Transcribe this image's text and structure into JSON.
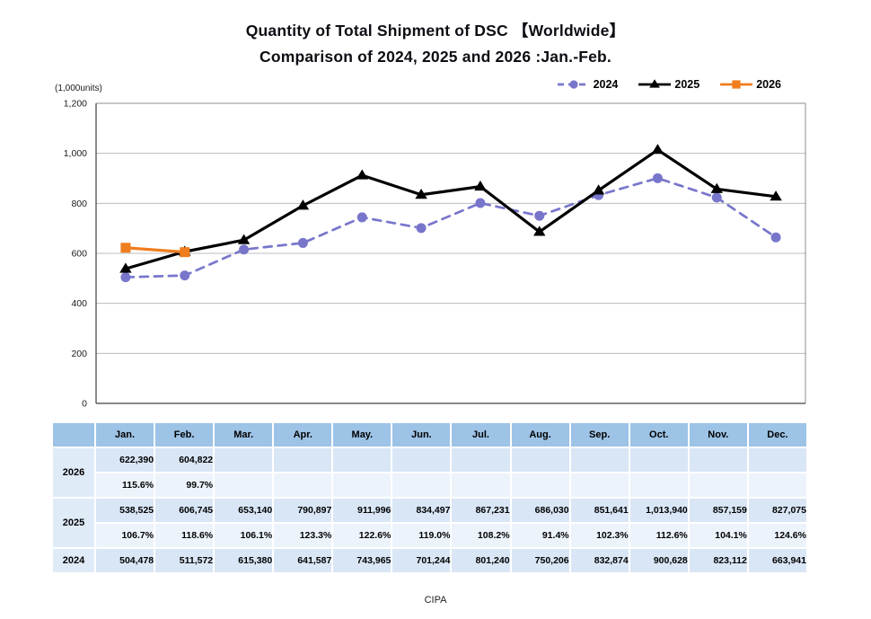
{
  "title": {
    "line1": "Quantity of Total Shipment of DSC 【Worldwide】",
    "line2": "Comparison of 2024, 2025 and 2026 :Jan.-Feb."
  },
  "footer": "CIPA",
  "chart_data": {
    "type": "line",
    "unit_label": "(1,000units)",
    "x_categories": [
      "Jan.",
      "Feb.",
      "Mar.",
      "Apr.",
      "May.",
      "Jun.",
      "Jul.",
      "Aug.",
      "Sep.",
      "Oct.",
      "Nov.",
      "Dec."
    ],
    "ylim": [
      0,
      1200
    ],
    "ytick_interval": 200,
    "ytick_labels": [
      "0",
      "200",
      "400",
      "600",
      "800",
      "1,000",
      "1,200"
    ],
    "grid": true,
    "legend_position": "top-right",
    "series": [
      {
        "name": "2024",
        "color": "#7876CB",
        "style": "dashed",
        "marker": "circle",
        "values": [
          504.478,
          511.572,
          615.38,
          641.587,
          743.965,
          701.244,
          801.24,
          750.206,
          832.874,
          900.628,
          823.112,
          663.941
        ]
      },
      {
        "name": "2025",
        "color": "#000000",
        "style": "solid",
        "marker": "triangle",
        "values": [
          538.525,
          606.745,
          653.14,
          790.897,
          911.996,
          834.497,
          867.231,
          686.03,
          851.641,
          1013.94,
          857.159,
          827.075
        ]
      },
      {
        "name": "2026",
        "color": "#F07D1E",
        "style": "solid",
        "marker": "square",
        "values": [
          622.39,
          604.822
        ]
      }
    ]
  },
  "table": {
    "colors": {
      "header": "#9DC3E6",
      "year_bg": "#E0EBF8",
      "values_bg": "#D9E6F5",
      "percent_bg": "#ECF3FB"
    },
    "months": [
      "Jan.",
      "Feb.",
      "Mar.",
      "Apr.",
      "May.",
      "Jun.",
      "Jul.",
      "Aug.",
      "Sep.",
      "Oct.",
      "Nov.",
      "Dec."
    ],
    "year_groups": [
      {
        "year": "2026",
        "rows": [
          {
            "type": "values",
            "cells": [
              "622,390",
              "604,822",
              "",
              "",
              "",
              "",
              "",
              "",
              "",
              "",
              "",
              ""
            ]
          },
          {
            "type": "percent",
            "cells": [
              "115.6%",
              "99.7%",
              "",
              "",
              "",
              "",
              "",
              "",
              "",
              "",
              "",
              ""
            ]
          }
        ]
      },
      {
        "year": "2025",
        "rows": [
          {
            "type": "values",
            "cells": [
              "538,525",
              "606,745",
              "653,140",
              "790,897",
              "911,996",
              "834,497",
              "867,231",
              "686,030",
              "851,641",
              "1,013,940",
              "857,159",
              "827,075"
            ]
          },
          {
            "type": "percent",
            "cells": [
              "106.7%",
              "118.6%",
              "106.1%",
              "123.3%",
              "122.6%",
              "119.0%",
              "108.2%",
              "91.4%",
              "102.3%",
              "112.6%",
              "104.1%",
              "124.6%"
            ]
          }
        ]
      },
      {
        "year": "2024",
        "rows": [
          {
            "type": "values",
            "cells": [
              "504,478",
              "511,572",
              "615,380",
              "641,587",
              "743,965",
              "701,244",
              "801,240",
              "750,206",
              "832,874",
              "900,628",
              "823,112",
              "663,941"
            ]
          }
        ]
      }
    ]
  }
}
